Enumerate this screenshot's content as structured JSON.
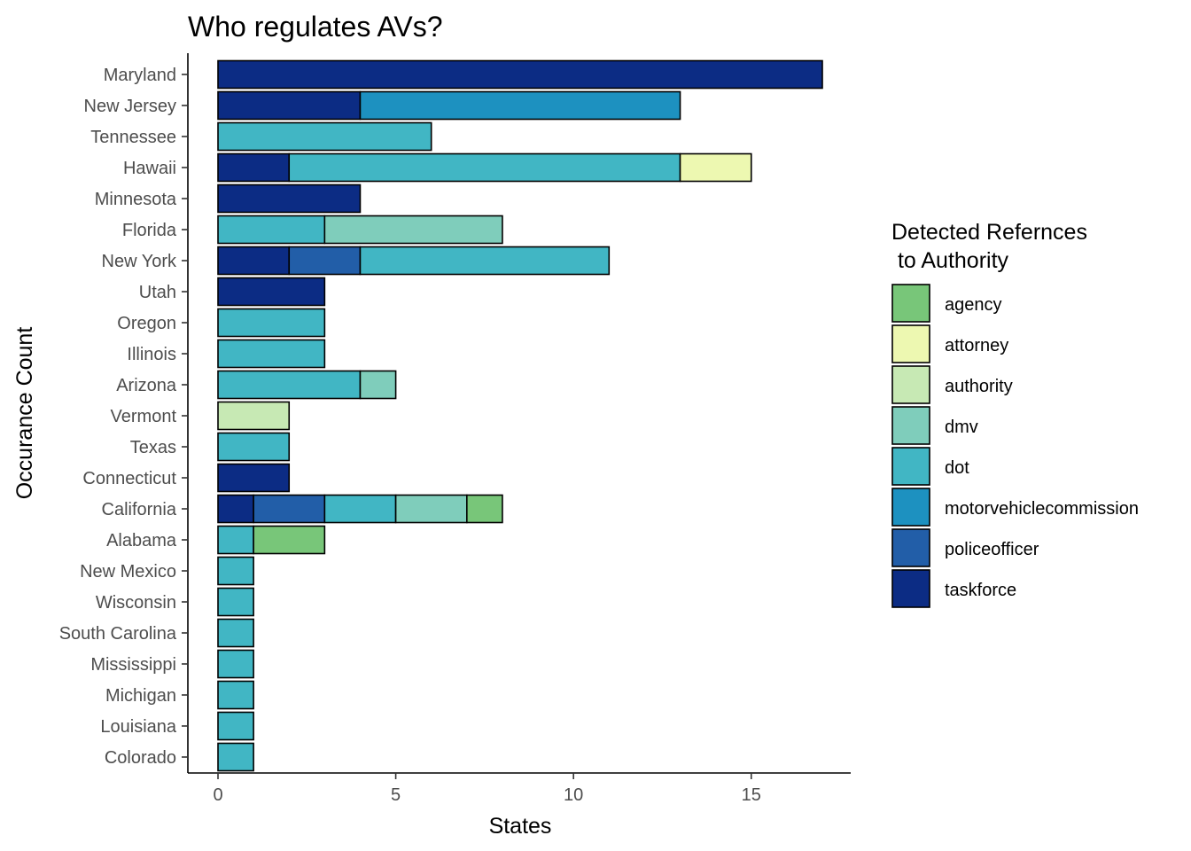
{
  "chart_data": {
    "type": "bar",
    "orientation": "horizontal",
    "stacked": true,
    "title": "Who regulates AVs?",
    "xlabel": "States",
    "ylabel": "Occurance Count",
    "xlim": [
      0,
      17.85
    ],
    "x_ticks": [
      0,
      5,
      10,
      15
    ],
    "grid": false,
    "legend": {
      "title_lines": [
        "Detected Refernces",
        " to Authority"
      ],
      "position": "right"
    },
    "categories": [
      "Maryland",
      "New Jersey",
      "Tennessee",
      "Hawaii",
      "Minnesota",
      "Florida",
      "New York",
      "Utah",
      "Oregon",
      "Illinois",
      "Arizona",
      "Vermont",
      "Texas",
      "Connecticut",
      "California",
      "Alabama",
      "New Mexico",
      "Wisconsin",
      "South Carolina",
      "Mississippi",
      "Michigan",
      "Louisiana",
      "Colorado"
    ],
    "series": [
      {
        "name": "agency",
        "color": "#78c679",
        "values": [
          0,
          0,
          0,
          0,
          0,
          0,
          0,
          0,
          0,
          0,
          0,
          0,
          0,
          0,
          1,
          2,
          0,
          0,
          0,
          0,
          0,
          0,
          0
        ]
      },
      {
        "name": "attorney",
        "color": "#edf8b1",
        "values": [
          0,
          0,
          0,
          2,
          0,
          0,
          0,
          0,
          0,
          0,
          0,
          0,
          0,
          0,
          0,
          0,
          0,
          0,
          0,
          0,
          0,
          0,
          0
        ]
      },
      {
        "name": "authority",
        "color": "#c7e9b4",
        "values": [
          0,
          0,
          0,
          0,
          0,
          0,
          0,
          0,
          0,
          0,
          0,
          2,
          0,
          0,
          0,
          0,
          0,
          0,
          0,
          0,
          0,
          0,
          0
        ]
      },
      {
        "name": "dmv",
        "color": "#7fcdbb",
        "values": [
          0,
          0,
          0,
          0,
          0,
          5,
          0,
          0,
          0,
          0,
          1,
          0,
          0,
          0,
          2,
          0,
          0,
          0,
          0,
          0,
          0,
          0,
          0
        ]
      },
      {
        "name": "dot",
        "color": "#41b6c4",
        "values": [
          0,
          0,
          6,
          11,
          0,
          3,
          7,
          0,
          3,
          3,
          4,
          0,
          2,
          0,
          2,
          1,
          1,
          1,
          1,
          1,
          1,
          1,
          1
        ]
      },
      {
        "name": "motorvehiclecommission",
        "color": "#1d91c0",
        "values": [
          0,
          9,
          0,
          0,
          0,
          0,
          0,
          0,
          0,
          0,
          0,
          0,
          0,
          0,
          0,
          0,
          0,
          0,
          0,
          0,
          0,
          0,
          0
        ]
      },
      {
        "name": "policeofficer",
        "color": "#225ea8",
        "values": [
          0,
          0,
          0,
          0,
          0,
          0,
          2,
          0,
          0,
          0,
          0,
          0,
          0,
          0,
          2,
          0,
          0,
          0,
          0,
          0,
          0,
          0,
          0
        ]
      },
      {
        "name": "taskforce",
        "color": "#0c2c84",
        "values": [
          17,
          4,
          0,
          2,
          4,
          0,
          2,
          3,
          0,
          0,
          0,
          0,
          0,
          2,
          1,
          0,
          0,
          0,
          0,
          0,
          0,
          0,
          0
        ]
      }
    ]
  }
}
